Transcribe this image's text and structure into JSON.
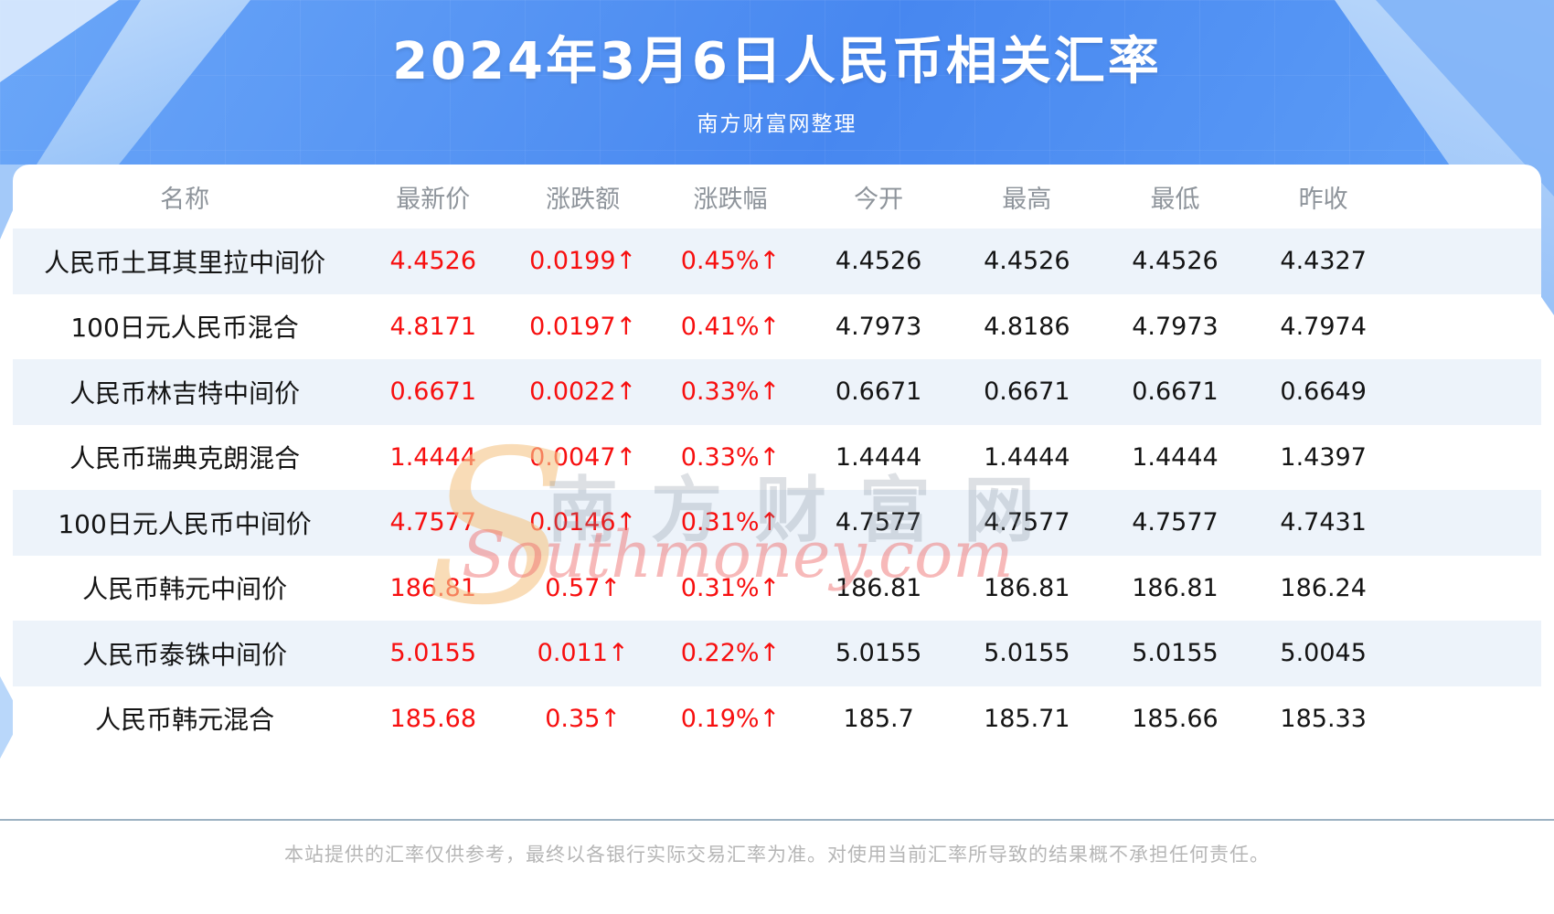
{
  "header": {
    "title": "2024年3月6日人民币相关汇率",
    "subtitle": "南方财富网整理"
  },
  "chart_data": {
    "type": "table",
    "title": "2024年3月6日人民币相关汇率",
    "subtitle": "南方财富网整理",
    "columns": [
      "名称",
      "最新价",
      "涨跌额",
      "涨跌幅",
      "今开",
      "最高",
      "最低",
      "昨收"
    ],
    "rows": [
      {
        "name": "人民币土耳其里拉中间价",
        "latest": "4.4526",
        "change": "0.0199↑",
        "change_pct": "0.45%↑",
        "open": "4.4526",
        "high": "4.4526",
        "low": "4.4526",
        "prev_close": "4.4327"
      },
      {
        "name": "100日元人民币混合",
        "latest": "4.8171",
        "change": "0.0197↑",
        "change_pct": "0.41%↑",
        "open": "4.7973",
        "high": "4.8186",
        "low": "4.7973",
        "prev_close": "4.7974"
      },
      {
        "name": "人民币林吉特中间价",
        "latest": "0.6671",
        "change": "0.0022↑",
        "change_pct": "0.33%↑",
        "open": "0.6671",
        "high": "0.6671",
        "low": "0.6671",
        "prev_close": "0.6649"
      },
      {
        "name": "人民币瑞典克朗混合",
        "latest": "1.4444",
        "change": "0.0047↑",
        "change_pct": "0.33%↑",
        "open": "1.4444",
        "high": "1.4444",
        "low": "1.4444",
        "prev_close": "1.4397"
      },
      {
        "name": "100日元人民币中间价",
        "latest": "4.7577",
        "change": "0.0146↑",
        "change_pct": "0.31%↑",
        "open": "4.7577",
        "high": "4.7577",
        "low": "4.7577",
        "prev_close": "4.7431"
      },
      {
        "name": "人民币韩元中间价",
        "latest": "186.81",
        "change": "0.57↑",
        "change_pct": "0.31%↑",
        "open": "186.81",
        "high": "186.81",
        "low": "186.81",
        "prev_close": "186.24"
      },
      {
        "name": "人民币泰铢中间价",
        "latest": "5.0155",
        "change": "0.011↑",
        "change_pct": "0.22%↑",
        "open": "5.0155",
        "high": "5.0155",
        "low": "5.0155",
        "prev_close": "5.0045"
      },
      {
        "name": "人民币韩元混合",
        "latest": "185.68",
        "change": "0.35↑",
        "change_pct": "0.19%↑",
        "open": "185.7",
        "high": "185.71",
        "low": "185.66",
        "prev_close": "185.33"
      }
    ]
  },
  "watermark": {
    "initial": "S",
    "cn": "南方财富网",
    "en": "Southmoney.com"
  },
  "footer": {
    "disclaimer": "本站提供的汇率仅供参考，最终以各银行实际交易汇率为准。对使用当前汇率所导致的结果概不承担任何责任。"
  },
  "colors": {
    "header_blue": "#4787f0",
    "row_alt": "#edf3fa",
    "up_red": "#f70f0f",
    "rule_gray": "#9db2c2"
  }
}
